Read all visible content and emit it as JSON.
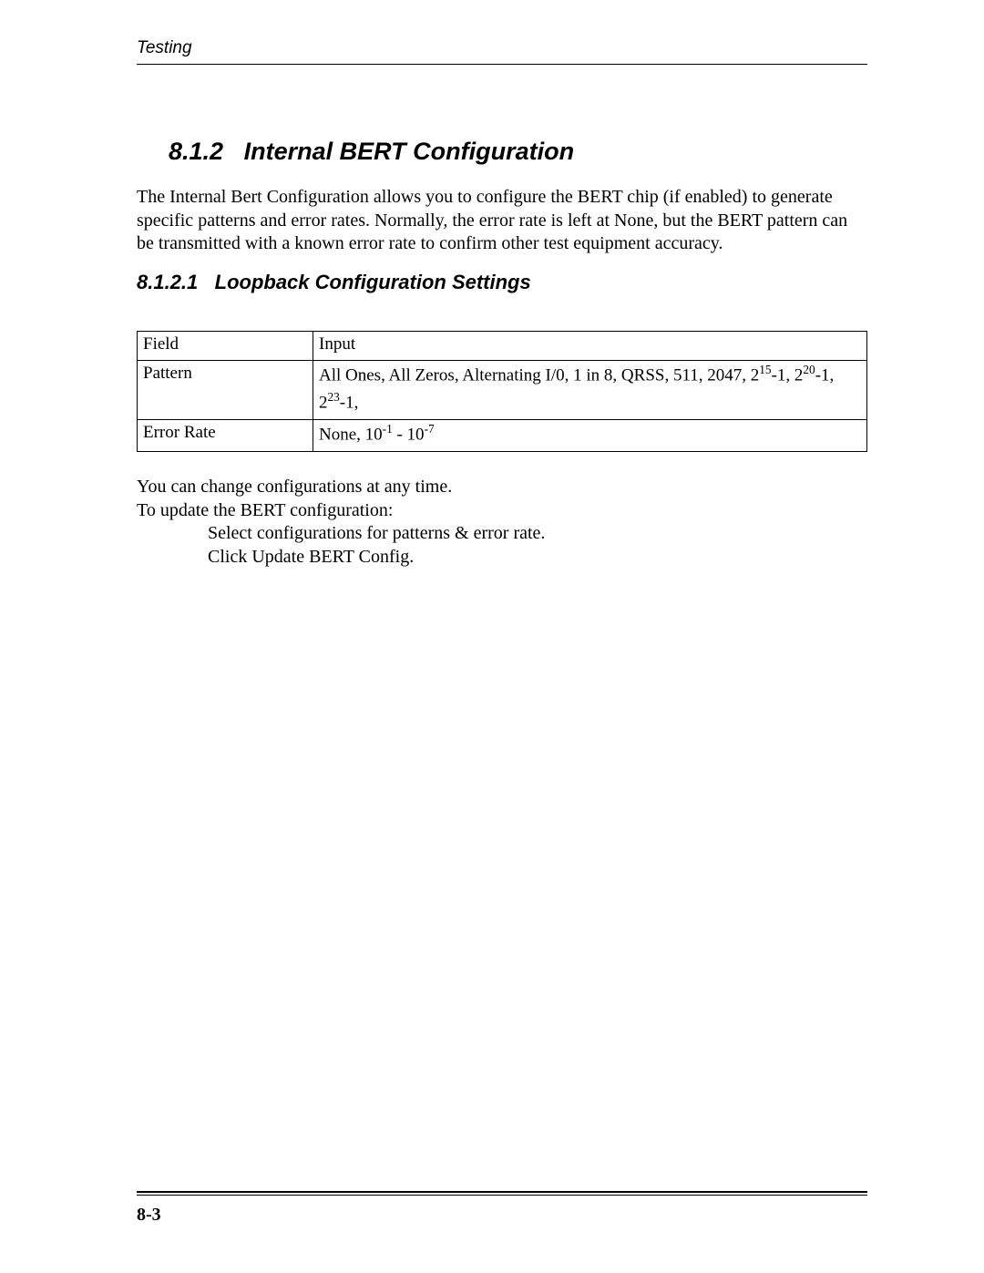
{
  "header": {
    "label": "Testing"
  },
  "section": {
    "number": "8.1.2",
    "title": "Internal BERT Configuration",
    "intro": "The Internal Bert Configuration allows you to configure the BERT chip (if enabled) to generate specific patterns and error rates. Normally, the error rate is left at None, but the BERT pattern can be transmitted with a known error rate to confirm other test equipment accuracy."
  },
  "subsection": {
    "number": "8.1.2.1",
    "title": "Loopback Configuration Settings"
  },
  "table": {
    "columns": [
      "Field",
      "Input"
    ],
    "rows": [
      {
        "field": "Pattern",
        "input_prefix": "All Ones, All Zeros, Alternating I/0, 1 in 8, QRSS, 511, 2047, 2",
        "input_sup1": "15",
        "input_mid1": "-1, 2",
        "input_sup2": "20",
        "input_mid2": "-1, 2",
        "input_sup3": "23",
        "input_suffix": "-1,"
      },
      {
        "field": "Error Rate",
        "input_prefix": "None, 10",
        "input_sup1": "-1",
        "input_mid1": " - 10",
        "input_sup2": "-7",
        "input_mid2": "",
        "input_sup3": "",
        "input_suffix": ""
      }
    ],
    "col_widths": [
      "180px",
      "auto"
    ],
    "border_color": "#000000",
    "font_size": 19
  },
  "after_table": {
    "line1": "You can change configurations at any time.",
    "line2": "To update the BERT configuration:",
    "step1": "Select configurations for patterns & error rate.",
    "step2": "Click Update BERT Config."
  },
  "footer": {
    "page_number": "8-3"
  },
  "style": {
    "background_color": "#ffffff",
    "text_color": "#000000",
    "header_font": "Arial",
    "body_font": "Times New Roman"
  }
}
